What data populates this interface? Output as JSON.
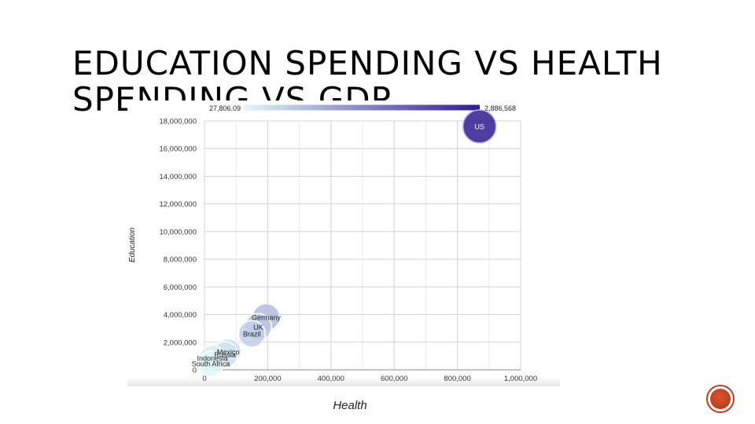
{
  "slide": {
    "title": "EDUCATION SPENDING VS HEALTH\nSPENDING VS GDP"
  },
  "chart_data": {
    "type": "scatter",
    "xlabel": "Health",
    "ylabel": "Education",
    "xlim": [
      0,
      1000000
    ],
    "ylim": [
      0,
      18000000
    ],
    "x_ticks": [
      "0",
      "200,000",
      "400,000",
      "600,000",
      "800,000",
      "1,000,000"
    ],
    "y_ticks": [
      "0",
      "2,000,000",
      "4,000,000",
      "6,000,000",
      "8,000,000",
      "10,000,000",
      "12,000,000",
      "14,000,000",
      "16,000,000",
      "18,000,000"
    ],
    "grid": true,
    "color_scale": {
      "min_label": "27,806.09",
      "max_label": "2,886,568",
      "min": 27806.09,
      "max": 2886568,
      "min_color": "#e0f7fa",
      "max_color": "#311b92"
    },
    "points": [
      {
        "label": "US",
        "x": 870000,
        "y": 17600000,
        "color_value": 2886568
      },
      {
        "label": "Germany",
        "x": 195000,
        "y": 3800000,
        "color_value": 230000
      },
      {
        "label": "UK",
        "x": 170000,
        "y": 3100000,
        "color_value": 160000
      },
      {
        "label": "Brazil",
        "x": 150000,
        "y": 2600000,
        "color_value": 120000
      },
      {
        "label": "Mexico",
        "x": 75000,
        "y": 1300000,
        "color_value": 60000
      },
      {
        "label": "Russia",
        "x": 65000,
        "y": 1100000,
        "color_value": 50000
      },
      {
        "label": "Indonesia",
        "x": 25000,
        "y": 850000,
        "color_value": 35000
      },
      {
        "label": "South Africa",
        "x": 20000,
        "y": 450000,
        "color_value": 27806.09
      }
    ]
  }
}
